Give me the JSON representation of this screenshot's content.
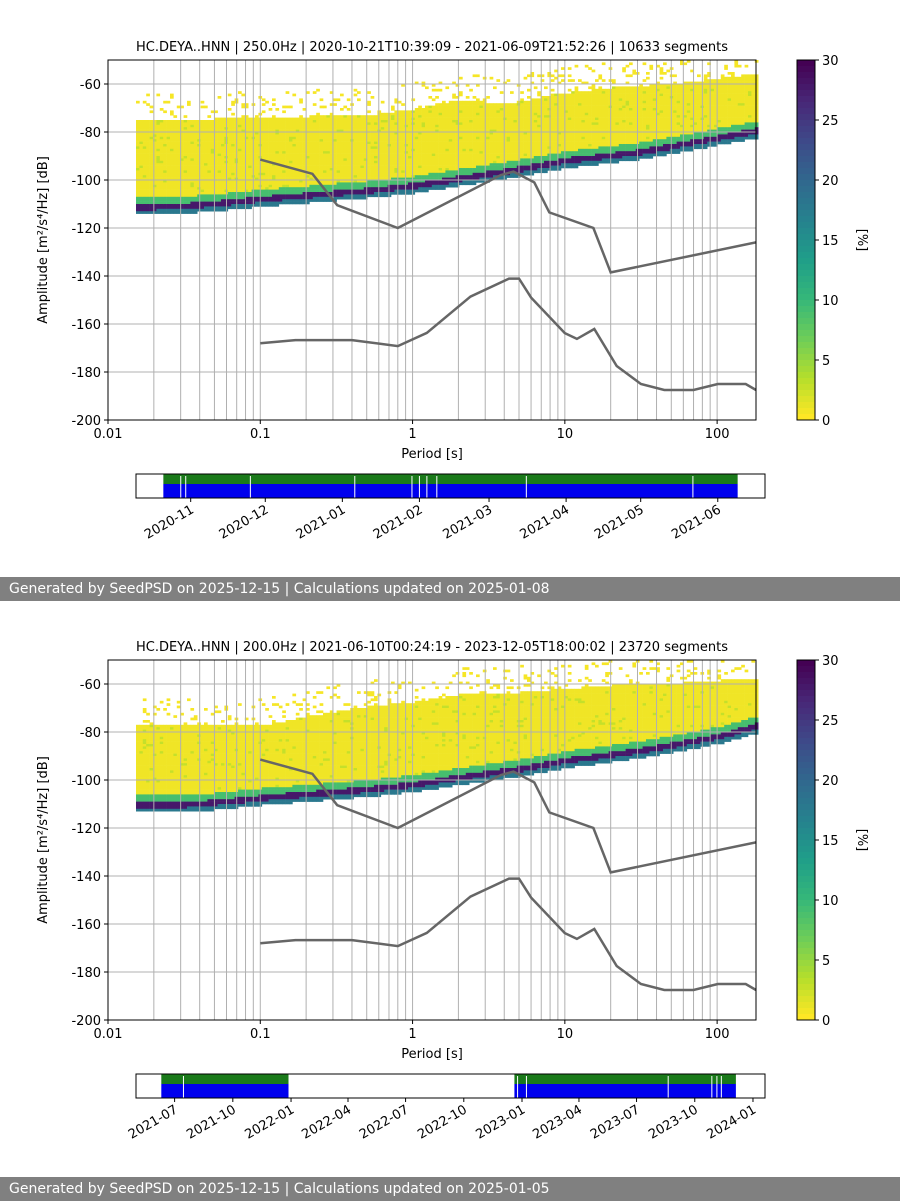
{
  "colors": {
    "nlnm_nhnm": "#666666",
    "availability_green": "#1a7a1a",
    "availability_blue": "#0000ee",
    "footer_bg": "#808080",
    "grid": "#b0b0b0"
  },
  "chart_data": [
    {
      "type": "heatmap",
      "title": "HC.DEYA..HNN | 250.0Hz | 2020-10-21T10:39:09 - 2021-06-09T21:52:26 | 10633 segments",
      "xlabel": "Period [s]",
      "ylabel": "Amplitude [m²/s⁴/Hz] [dB]",
      "xscale": "log",
      "xlim": [
        0.01,
        180
      ],
      "ylim": [
        -200,
        -50
      ],
      "x_ticks": [
        "0.01",
        "0.1",
        "1",
        "10",
        "100"
      ],
      "y_ticks": [
        "-60",
        "-80",
        "-100",
        "-120",
        "-140",
        "-160",
        "-180",
        "-200"
      ],
      "colorbar": {
        "label": "[%]",
        "range": [
          0,
          30
        ],
        "ticks": [
          "0",
          "5",
          "10",
          "15",
          "20",
          "25",
          "30"
        ],
        "colormap": "viridis_r"
      },
      "nhnm": [
        [
          0.1,
          -91.5
        ],
        [
          0.22,
          -97.4
        ],
        [
          0.32,
          -110.5
        ],
        [
          0.8,
          -120
        ],
        [
          3.8,
          -97.9
        ],
        [
          4.6,
          -96.5
        ],
        [
          6.3,
          -101
        ],
        [
          7.9,
          -113.5
        ],
        [
          15.4,
          -120
        ],
        [
          20,
          -138.5
        ],
        [
          354.8,
          -126
        ]
      ],
      "nlnm": [
        [
          0.1,
          -168
        ],
        [
          0.17,
          -166.7
        ],
        [
          0.4,
          -166.7
        ],
        [
          0.8,
          -169.2
        ],
        [
          1.24,
          -163.7
        ],
        [
          2.4,
          -148.6
        ],
        [
          4.3,
          -141.1
        ],
        [
          5,
          -141.1
        ],
        [
          6,
          -149
        ],
        [
          10,
          -163.8
        ],
        [
          12,
          -166.2
        ],
        [
          15.6,
          -162.1
        ],
        [
          21.9,
          -177.5
        ],
        [
          31.6,
          -185
        ],
        [
          45,
          -187.5
        ],
        [
          70,
          -187.5
        ],
        [
          101,
          -185
        ],
        [
          154,
          -185
        ],
        [
          328,
          -187.5
        ]
      ],
      "psd_mode": [
        [
          0.013,
          -108
        ],
        [
          0.015,
          -111
        ],
        [
          0.03,
          -110.5
        ],
        [
          0.06,
          -109
        ],
        [
          0.1,
          -107.5
        ],
        [
          0.2,
          -106
        ],
        [
          0.5,
          -104
        ],
        [
          1,
          -102
        ],
        [
          2,
          -99
        ],
        [
          5,
          -95
        ],
        [
          10,
          -91.5
        ],
        [
          30,
          -88
        ],
        [
          100,
          -82
        ],
        [
          180,
          -79
        ]
      ],
      "psd_upper": [
        [
          0.01,
          -72
        ],
        [
          0.05,
          -71
        ],
        [
          0.2,
          -70
        ],
        [
          0.5,
          -69.5
        ],
        [
          1,
          -67
        ],
        [
          2,
          -63
        ],
        [
          4,
          -65
        ],
        [
          8,
          -61
        ],
        [
          20,
          -58
        ],
        [
          60,
          -56
        ],
        [
          180,
          -52
        ]
      ],
      "availability": {
        "ticks": [
          "2020-11",
          "2020-12",
          "2021-01",
          "2021-02",
          "2021-03",
          "2021-04",
          "2021-05",
          "2021-06"
        ],
        "start": "2020-10-10",
        "end": "2021-06-20",
        "coverage": [
          "2020-10-21",
          "2021-06-09"
        ],
        "gaps": [
          "2020-10-28",
          "2020-10-30",
          "2020-11-25",
          "2021-01-06",
          "2021-01-29",
          "2021-02-01",
          "2021-02-04",
          "2021-02-08",
          "2021-03-16",
          "2021-05-22"
        ]
      },
      "footer": "Generated by SeedPSD on 2025-12-15 | Calculations updated on 2025-01-08"
    },
    {
      "type": "heatmap",
      "title": "HC.DEYA..HNN | 200.0Hz | 2021-06-10T00:24:19 - 2023-12-05T18:00:02 | 23720 segments",
      "xlabel": "Period [s]",
      "ylabel": "Amplitude [m²/s⁴/Hz] [dB]",
      "xscale": "log",
      "xlim": [
        0.01,
        180
      ],
      "ylim": [
        -200,
        -50
      ],
      "x_ticks": [
        "0.01",
        "0.1",
        "1",
        "10",
        "100"
      ],
      "y_ticks": [
        "-60",
        "-80",
        "-100",
        "-120",
        "-140",
        "-160",
        "-180",
        "-200"
      ],
      "colorbar": {
        "label": "[%]",
        "range": [
          0,
          30
        ],
        "ticks": [
          "0",
          "5",
          "10",
          "15",
          "20",
          "25",
          "30"
        ],
        "colormap": "viridis_r"
      },
      "nhnm": [
        [
          0.1,
          -91.5
        ],
        [
          0.22,
          -97.4
        ],
        [
          0.32,
          -110.5
        ],
        [
          0.8,
          -120
        ],
        [
          3.8,
          -97.9
        ],
        [
          4.6,
          -96.5
        ],
        [
          6.3,
          -101
        ],
        [
          7.9,
          -113.5
        ],
        [
          15.4,
          -120
        ],
        [
          20,
          -138.5
        ],
        [
          354.8,
          -126
        ]
      ],
      "nlnm": [
        [
          0.1,
          -168
        ],
        [
          0.17,
          -166.7
        ],
        [
          0.4,
          -166.7
        ],
        [
          0.8,
          -169.2
        ],
        [
          1.24,
          -163.7
        ],
        [
          2.4,
          -148.6
        ],
        [
          4.3,
          -141.1
        ],
        [
          5,
          -141.1
        ],
        [
          6,
          -149
        ],
        [
          10,
          -163.8
        ],
        [
          12,
          -166.2
        ],
        [
          15.6,
          -162.1
        ],
        [
          21.9,
          -177.5
        ],
        [
          31.6,
          -185
        ],
        [
          45,
          -187.5
        ],
        [
          70,
          -187.5
        ],
        [
          101,
          -185
        ],
        [
          154,
          -185
        ],
        [
          328,
          -187.5
        ]
      ],
      "psd_mode": [
        [
          0.013,
          -107
        ],
        [
          0.015,
          -110
        ],
        [
          0.03,
          -110
        ],
        [
          0.06,
          -108.5
        ],
        [
          0.1,
          -107
        ],
        [
          0.2,
          -105.5
        ],
        [
          0.5,
          -103.5
        ],
        [
          1,
          -101.5
        ],
        [
          2,
          -98.5
        ],
        [
          5,
          -95
        ],
        [
          10,
          -91.5
        ],
        [
          30,
          -87.5
        ],
        [
          100,
          -81.5
        ],
        [
          180,
          -77
        ]
      ],
      "psd_upper": [
        [
          0.01,
          -74
        ],
        [
          0.05,
          -73
        ],
        [
          0.1,
          -74
        ],
        [
          0.2,
          -70
        ],
        [
          0.5,
          -66
        ],
        [
          1,
          -64
        ],
        [
          2,
          -61
        ],
        [
          5,
          -60
        ],
        [
          20,
          -57
        ],
        [
          60,
          -56
        ],
        [
          180,
          -54
        ]
      ],
      "availability": {
        "ticks": [
          "2021-07",
          "2021-10",
          "2022-01",
          "2022-04",
          "2022-07",
          "2022-10",
          "2023-01",
          "2023-04",
          "2023-07",
          "2023-10",
          "2024-01"
        ],
        "start": "2021-05-01",
        "end": "2024-01-20",
        "coverage": [
          [
            "2021-06-10",
            "2021-12-28"
          ],
          [
            "2022-12-20",
            "2023-12-05"
          ]
        ],
        "gaps": [
          "2021-07-15",
          "2022-12-25",
          "2023-01-08",
          "2023-08-20",
          "2023-10-28",
          "2023-11-05",
          "2023-11-12"
        ]
      },
      "footer": "Generated by SeedPSD on 2025-12-15 | Calculations updated on 2025-01-05"
    }
  ]
}
